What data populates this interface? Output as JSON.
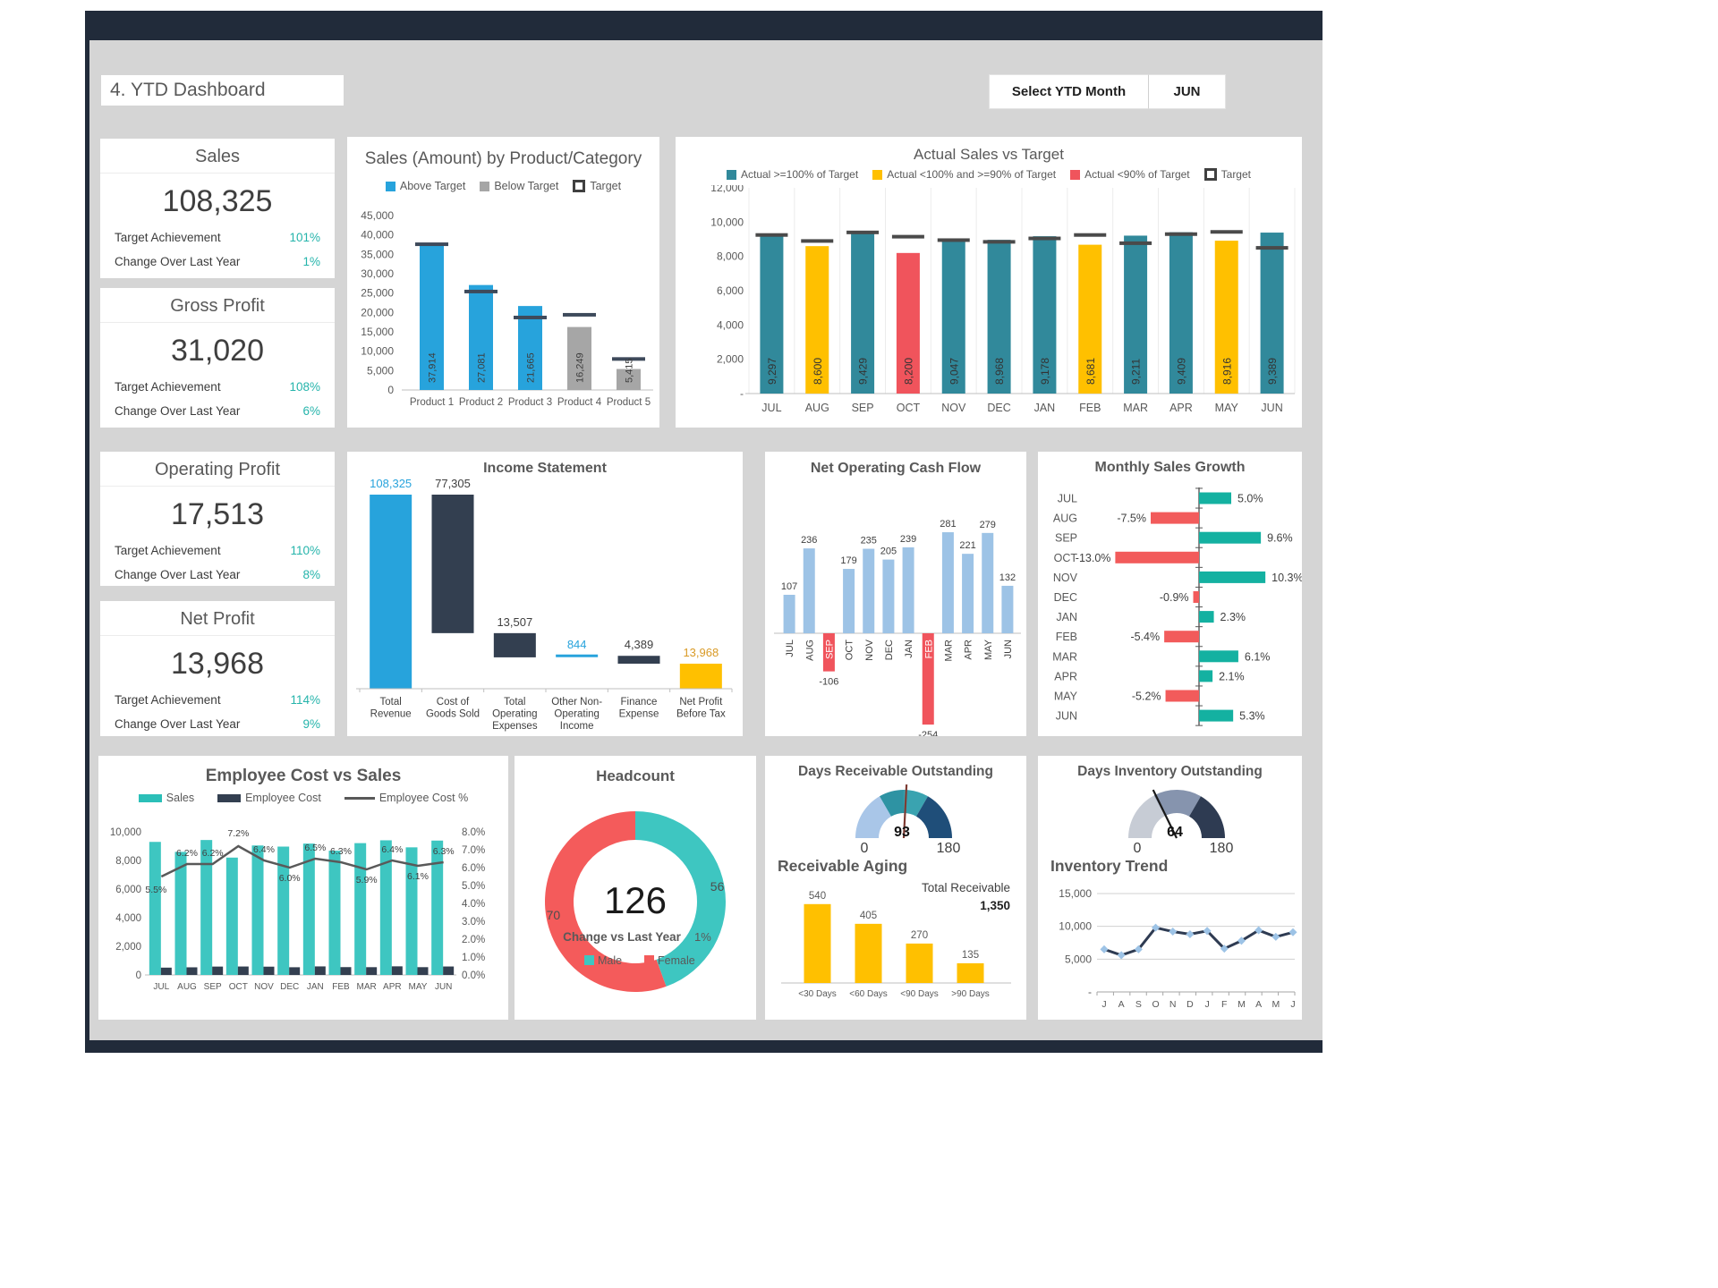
{
  "header": {
    "title": "4. YTD Dashboard",
    "month_selector_label": "Select YTD Month",
    "selected_month": "JUN"
  },
  "kpi_labels": {
    "target": "Target Achievement",
    "change": "Change Over Last Year"
  },
  "kpis": [
    {
      "title": "Sales",
      "value": "108,325",
      "target_achievement": "101%",
      "change_over_last_year": "1%"
    },
    {
      "title": "Gross Profit",
      "value": "31,020",
      "target_achievement": "108%",
      "change_over_last_year": "6%"
    },
    {
      "title": "Operating Profit",
      "value": "17,513",
      "target_achievement": "110%",
      "change_over_last_year": "8%"
    },
    {
      "title": "Net Profit",
      "value": "13,968",
      "target_achievement": "114%",
      "change_over_last_year": "9%"
    }
  ],
  "colors": {
    "frame_navy": "#212B3A",
    "body_gray": "#D5D5D5",
    "accent_teal": "#25B4AB",
    "blue": "#27A3DC",
    "gray_bar": "#A6A6A6",
    "navy_bar": "#333F50",
    "teal_bar": "#31899B",
    "gold": "#FFC000",
    "red": "#F0545C",
    "light_blue": "#9DC3E6",
    "growth_green": "#14B1A1",
    "growth_red": "#F25B5B",
    "donut_male": "#3EC6C1",
    "donut_female": "#F45B5B",
    "line_gray": "#595959",
    "gauge_dro": [
      "#A9C6E8",
      "#2E93A3",
      "#3AA3B0",
      "#1F4E79"
    ],
    "gauge_dio": [
      "#C7CCD5",
      "#8694AE",
      "#2E3B52"
    ],
    "needle_dro": "#7E3B33",
    "needle_dio": "#1A1A1A"
  },
  "chart_data": [
    {
      "id": "sales_by_product",
      "type": "bar",
      "title": "Sales (Amount) by Product/Category",
      "legend": [
        "Above Target",
        "Below Target",
        "Target"
      ],
      "categories": [
        "Product 1",
        "Product 2",
        "Product 3",
        "Product 4",
        "Product 5"
      ],
      "values": [
        37914,
        27081,
        21665,
        16249,
        5415
      ],
      "value_labels": [
        "37,914",
        "27,081",
        "21,665",
        "16,249",
        "5,415"
      ],
      "above_target": [
        true,
        true,
        true,
        false,
        false
      ],
      "targets": [
        37600,
        25400,
        18700,
        19400,
        8000
      ],
      "ylim": [
        0,
        45000
      ],
      "ytick_step": 5000
    },
    {
      "id": "actual_vs_target",
      "type": "bar",
      "title": "Actual Sales vs Target",
      "legend": [
        "Actual >=100% of Target",
        "Actual <100% and >=90% of Target",
        "Actual <90% of Target",
        "Target"
      ],
      "categories": [
        "JUL",
        "AUG",
        "SEP",
        "OCT",
        "NOV",
        "DEC",
        "JAN",
        "FEB",
        "MAR",
        "APR",
        "MAY",
        "JUN"
      ],
      "values": [
        9297,
        8600,
        9429,
        8200,
        9047,
        8968,
        9178,
        8681,
        9211,
        9409,
        8916,
        9389
      ],
      "value_labels": [
        "9,297",
        "8,600",
        "9,429",
        "8,200",
        "9,047",
        "8,968",
        "9,178",
        "8,681",
        "9,211",
        "9,409",
        "8,916",
        "9,389"
      ],
      "status": [
        "ge100",
        "ge90",
        "ge100",
        "lt90",
        "ge100",
        "ge100",
        "ge100",
        "ge90",
        "ge100",
        "ge100",
        "ge90",
        "ge100"
      ],
      "targets": [
        9250,
        8900,
        9400,
        9150,
        8950,
        8850,
        9050,
        9250,
        8770,
        9300,
        9430,
        8500
      ],
      "ylim": [
        0,
        12000
      ],
      "ytick_step": 2000,
      "ytick_labels": [
        "-",
        "2,000",
        "4,000",
        "6,000",
        "8,000",
        "10,000",
        "12,000"
      ]
    },
    {
      "id": "income_statement",
      "type": "bar",
      "title": "Income Statement",
      "items": [
        {
          "label": "Total Revenue",
          "label_lines": [
            "Total",
            "Revenue"
          ],
          "value": 108325,
          "display": "108,325",
          "kind": "revenue"
        },
        {
          "label": "Cost of Goods Sold",
          "label_lines": [
            "Cost of",
            "Goods Sold"
          ],
          "value": 77305,
          "display": "77,305",
          "kind": "expense"
        },
        {
          "label": "Total Operating Expenses",
          "label_lines": [
            "Total",
            "Operating",
            "Expenses"
          ],
          "value": 13507,
          "display": "13,507",
          "kind": "expense"
        },
        {
          "label": "Other Non-Operating Income",
          "label_lines": [
            "Other Non-",
            "Operating",
            "Income"
          ],
          "value": 844,
          "display": "844",
          "kind": "income"
        },
        {
          "label": "Finance Expense",
          "label_lines": [
            "Finance",
            "Expense"
          ],
          "value": 4389,
          "display": "4,389",
          "kind": "expense"
        },
        {
          "label": "Net Profit Before Tax",
          "label_lines": [
            "Net Profit",
            "Before Tax"
          ],
          "value": 13968,
          "display": "13,968",
          "kind": "result"
        }
      ]
    },
    {
      "id": "cash_flow",
      "type": "bar",
      "title": "Net Operating Cash Flow",
      "categories": [
        "JUL",
        "AUG",
        "SEP",
        "OCT",
        "NOV",
        "DEC",
        "JAN",
        "FEB",
        "MAR",
        "APR",
        "MAY",
        "JUN"
      ],
      "values": [
        107,
        236,
        -106,
        179,
        235,
        205,
        239,
        -254,
        281,
        221,
        279,
        132
      ],
      "value_labels": [
        "107",
        "236",
        "-106",
        "179",
        "235",
        "205",
        "239",
        "-254",
        "281",
        "221",
        "279",
        "132"
      ]
    },
    {
      "id": "monthly_growth",
      "type": "bar",
      "title": "Monthly Sales Growth",
      "categories": [
        "JUL",
        "AUG",
        "SEP",
        "OCT",
        "NOV",
        "DEC",
        "JAN",
        "FEB",
        "MAR",
        "APR",
        "MAY",
        "JUN"
      ],
      "values": [
        5.0,
        -7.5,
        9.6,
        -13.0,
        10.3,
        -0.9,
        2.3,
        -5.4,
        6.1,
        2.1,
        -5.2,
        5.3
      ],
      "value_labels": [
        "5.0%",
        "-7.5%",
        "9.6%",
        "-13.0%",
        "10.3%",
        "-0.9%",
        "2.3%",
        "-5.4%",
        "6.1%",
        "2.1%",
        "-5.2%",
        "5.3%"
      ]
    },
    {
      "id": "employee_cost_vs_sales",
      "type": "bar",
      "title": "Employee Cost vs Sales",
      "legend": [
        "Sales",
        "Employee Cost",
        "Employee Cost %"
      ],
      "categories": [
        "JUL",
        "AUG",
        "SEP",
        "OCT",
        "NOV",
        "DEC",
        "JAN",
        "FEB",
        "MAR",
        "APR",
        "MAY",
        "JUN"
      ],
      "series": [
        {
          "name": "Sales",
          "type": "bar",
          "values": [
            9297,
            8600,
            9429,
            8200,
            9047,
            8968,
            9178,
            8681,
            9211,
            9409,
            8916,
            9389
          ]
        },
        {
          "name": "Employee Cost",
          "type": "bar",
          "values": [
            511,
            533,
            585,
            590,
            579,
            538,
            597,
            547,
            543,
            602,
            544,
            591
          ]
        },
        {
          "name": "Employee Cost %",
          "type": "line",
          "values": [
            5.5,
            6.2,
            6.2,
            7.2,
            6.4,
            6.0,
            6.5,
            6.3,
            5.9,
            6.4,
            6.1,
            6.3
          ],
          "labels": [
            "5.5%",
            "6.2%",
            "6.2%",
            "7.2%",
            "6.4%",
            "6.0%",
            "6.5%",
            "6.3%",
            "5.9%",
            "6.4%",
            "6.1%",
            "6.3%"
          ]
        }
      ],
      "ylim_left": [
        0,
        10000
      ],
      "ylim_right": [
        0,
        8
      ],
      "ytick_labels_left": [
        "0",
        "2,000",
        "4,000",
        "6,000",
        "8,000",
        "10,000"
      ],
      "ytick_labels_right": [
        "0.0%",
        "1.0%",
        "2.0%",
        "3.0%",
        "4.0%",
        "5.0%",
        "6.0%",
        "7.0%",
        "8.0%"
      ]
    },
    {
      "id": "headcount",
      "type": "pie",
      "title": "Headcount",
      "total": "126",
      "change_label": "Change vs Last Year",
      "change_value": "1%",
      "legend": [
        "Male",
        "Female"
      ],
      "slices": [
        {
          "name": "Male",
          "value": 56
        },
        {
          "name": "Female",
          "value": 70
        }
      ]
    },
    {
      "id": "days_receivable",
      "type": "gauge",
      "title": "Days Receivable Outstanding",
      "min": 0,
      "max": 180,
      "value": 93,
      "segments": [
        [
          0,
          60
        ],
        [
          60,
          90
        ],
        [
          90,
          120
        ],
        [
          120,
          180
        ]
      ]
    },
    {
      "id": "receivable_aging",
      "type": "bar",
      "title": "Receivable Aging",
      "categories": [
        "<30 Days",
        "<60 Days",
        "<90 Days",
        ">90 Days"
      ],
      "values": [
        540,
        405,
        270,
        135
      ],
      "value_labels": [
        "540",
        "405",
        "270",
        "135"
      ],
      "total_label": "Total Receivable",
      "total_value": "1,350"
    },
    {
      "id": "days_inventory",
      "type": "gauge",
      "title": "Days Inventory Outstanding",
      "min": 0,
      "max": 180,
      "value": 64,
      "segments": [
        [
          0,
          62
        ],
        [
          62,
          120
        ],
        [
          120,
          180
        ]
      ]
    },
    {
      "id": "inventory_trend",
      "type": "line",
      "title": "Inventory Trend",
      "x": [
        "J",
        "A",
        "S",
        "O",
        "N",
        "D",
        "J",
        "F",
        "M",
        "A",
        "M",
        "J"
      ],
      "values": [
        6500,
        5600,
        6500,
        9800,
        9200,
        8800,
        9300,
        6600,
        7800,
        9400,
        8400,
        9100
      ],
      "ylim": [
        0,
        15000
      ],
      "ytick_labels": [
        "15,000",
        "10,000",
        "5,000",
        "-"
      ]
    }
  ]
}
